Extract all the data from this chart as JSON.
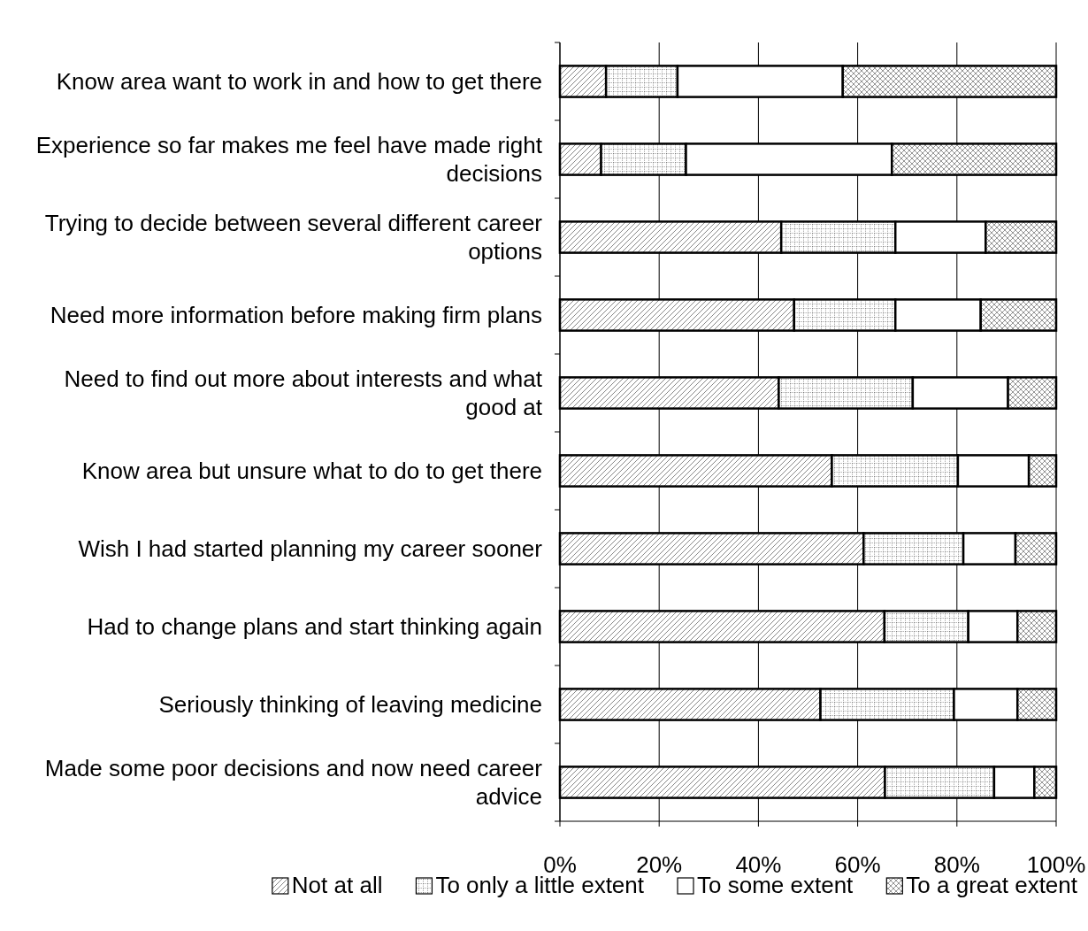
{
  "chart_data": {
    "type": "bar",
    "orientation": "horizontal",
    "stacked": true,
    "categories": [
      "Know area want to work in and how to get there",
      "Experience so far makes me feel have made right decisions",
      "Trying to decide between several different career options",
      "Need more information before making firm plans",
      "Need to find out more about interests and what good at",
      "Know area but unsure what to do to get there",
      "Wish I had started planning my career sooner",
      "Had to change plans and start thinking again",
      "Seriously thinking of leaving medicine",
      "Made some poor decisions and now need career advice"
    ],
    "series": [
      {
        "name": "Not at all",
        "color": "#000000",
        "values": [
          9.3,
          8.3,
          44.6,
          47.2,
          44.1,
          54.8,
          61.2,
          65.4,
          52.5,
          65.5
        ]
      },
      {
        "name": "To only a little extent",
        "color": "#000000",
        "values": [
          14.4,
          17.1,
          23.0,
          20.4,
          27.0,
          25.4,
          20.1,
          16.9,
          26.9,
          22.0
        ]
      },
      {
        "name": "To some extent",
        "color": "#ffffff",
        "values": [
          33.3,
          41.5,
          18.2,
          17.2,
          19.2,
          14.3,
          10.5,
          9.9,
          12.8,
          8.1
        ]
      },
      {
        "name": "To a great extent",
        "color": "#000000",
        "values": [
          43.0,
          33.1,
          14.2,
          15.2,
          9.7,
          5.5,
          8.2,
          7.8,
          7.8,
          4.4
        ]
      }
    ],
    "xlim": [
      0,
      100
    ],
    "xticks": [
      {
        "value": 0,
        "label": "0%"
      },
      {
        "value": 20,
        "label": "20%"
      },
      {
        "value": 40,
        "label": "40%"
      },
      {
        "value": 60,
        "label": "60%"
      },
      {
        "value": 80,
        "label": "80%"
      },
      {
        "value": 100,
        "label": "100%"
      }
    ],
    "grid": "x",
    "legend": "bottom"
  }
}
